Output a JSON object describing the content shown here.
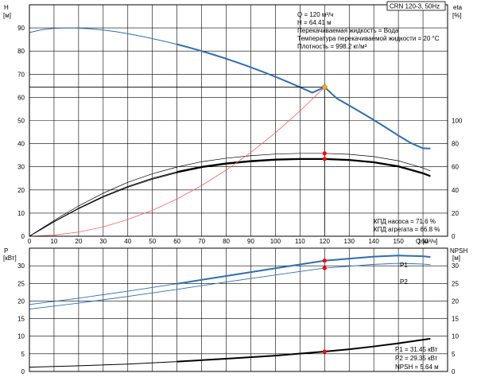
{
  "colors": {
    "head_curve": "#2f6db3",
    "efficiency_pump": "#000000",
    "efficiency_unit": "#000000",
    "system_curve": "#ff6060",
    "operating_point": "#ff0000",
    "duty_point": "#f5a623",
    "power_p1": "#2f6db3",
    "power_p2": "#2f6db3",
    "npsh": "#000000"
  },
  "labels": {
    "pump_model": "CRN 120-3, 50Hz",
    "h_axis_label": "H",
    "h_axis_unit": "[м]",
    "eta_axis_label": "eta",
    "eta_axis_unit": "[%]",
    "q_axis_label": "Q [м³/ч]",
    "p_axis_label": "P",
    "p_axis_unit": "[кВт]",
    "npsh_axis_label": "NPSH",
    "npsh_axis_unit": "[м]",
    "p1_label": "P1",
    "p2_label": "P2"
  },
  "info_top": [
    "Q = 120 м³/ч",
    "H = 64.41 м",
    "Перекачиваемая жидкость = Вода",
    "Температура перекачиваемой жидкости = 20 °C",
    "Плотность = 998.2 кг/м³"
  ],
  "info_eff": [
    "КПД насоса = 71.6 %",
    "КПД агрегата = 66.8 %"
  ],
  "info_bottom": [
    "P1 = 31.45 кВт",
    "P2 = 29.35 кВт",
    "NPSH = 5.64 м"
  ],
  "chart_data": [
    {
      "type": "line",
      "name": "head-efficiency",
      "x_ticks": [
        0,
        10,
        20,
        30,
        40,
        50,
        60,
        70,
        80,
        90,
        100,
        110,
        120,
        130,
        140,
        150,
        160
      ],
      "y_left_ticks": [
        0,
        10,
        20,
        30,
        40,
        50,
        60,
        70,
        80,
        90
      ],
      "y_right_ticks": [
        0,
        20,
        40,
        60,
        80,
        100
      ],
      "xlim": [
        0,
        170
      ],
      "ylim_left": [
        0,
        100
      ],
      "ylim_right": [
        0,
        200
      ],
      "grid": true,
      "series": [
        {
          "key": "head",
          "axis": "left",
          "x": [
            0,
            5,
            10,
            15,
            20,
            25,
            30,
            35,
            40,
            45,
            50,
            55,
            60,
            65,
            70,
            75,
            80,
            85,
            90,
            95,
            100,
            105,
            110,
            115,
            120,
            125,
            130,
            135,
            140,
            145,
            150,
            155,
            160,
            163
          ],
          "y": [
            88.0,
            89.2,
            89.8,
            90.0,
            89.9,
            89.6,
            89.1,
            88.4,
            87.5,
            86.5,
            85.4,
            84.2,
            82.9,
            81.5,
            80.0,
            78.4,
            76.7,
            74.9,
            73.0,
            71.0,
            68.9,
            66.7,
            64.4,
            62.0,
            64.41,
            59.5,
            56.5,
            53.4,
            50.2,
            46.9,
            43.5,
            40.3,
            38.0,
            37.9
          ],
          "heavy_from_x": 60
        },
        {
          "key": "eta_unit",
          "axis": "right",
          "x": [
            0,
            10,
            20,
            30,
            40,
            50,
            60,
            70,
            80,
            90,
            100,
            110,
            120,
            130,
            140,
            150,
            160,
            163
          ],
          "y": [
            0,
            12.6,
            24.2,
            34.4,
            43.0,
            50.0,
            55.6,
            60.0,
            63.0,
            65.0,
            66.3,
            66.8,
            66.8,
            66.0,
            64.0,
            60.5,
            54.5,
            52.0
          ],
          "heavy_from_x": 60
        },
        {
          "key": "eta_pump_band_upper",
          "axis": "right",
          "x": [
            0,
            10,
            20,
            30,
            40,
            50,
            60,
            70,
            80,
            90,
            100,
            110,
            120,
            130,
            140,
            150,
            160,
            163
          ],
          "y": [
            0,
            13.6,
            26.2,
            37.2,
            46.6,
            54.0,
            59.8,
            64.4,
            67.4,
            69.6,
            71.0,
            71.6,
            71.6,
            70.8,
            68.8,
            65.2,
            59.0,
            56.6
          ]
        },
        {
          "key": "eta_pump_band_lower",
          "axis": "right",
          "x": [
            0,
            10,
            20,
            30,
            40,
            50,
            60,
            70,
            80,
            90,
            100,
            110,
            120,
            130,
            140,
            150,
            160,
            163
          ],
          "y": [
            0,
            12.4,
            23.8,
            33.8,
            42.2,
            49.2,
            54.8,
            59.2,
            62.2,
            64.2,
            65.6,
            66.2,
            66.2,
            65.4,
            63.4,
            59.8,
            53.8,
            51.4
          ]
        },
        {
          "key": "system",
          "axis": "left",
          "x": [
            0,
            10,
            20,
            30,
            40,
            50,
            60,
            70,
            80,
            90,
            100,
            110,
            120
          ],
          "y": [
            0,
            0.5,
            1.8,
            4.0,
            7.2,
            11.2,
            16.1,
            21.9,
            28.6,
            36.2,
            44.7,
            54.1,
            64.41
          ]
        }
      ],
      "operating_point": {
        "x": 120,
        "head": 64.41
      },
      "marker_points_left": [
        {
          "x": 120,
          "y": 64.41,
          "kind": "duty"
        },
        {
          "x": 120,
          "y": 35.8,
          "kind": "op"
        },
        {
          "x": 120,
          "y": 33.4,
          "kind": "op"
        }
      ]
    },
    {
      "type": "line",
      "name": "power-npsh",
      "y_left_ticks": [
        0,
        5,
        10,
        15,
        20,
        25,
        30
      ],
      "y_right_ticks": [
        0,
        5,
        10,
        15,
        20,
        25,
        30
      ],
      "ylim_left": [
        0,
        35
      ],
      "ylim_right": [
        0,
        35
      ],
      "xlim": [
        0,
        170
      ],
      "grid": true,
      "series": [
        {
          "key": "p1",
          "axis": "left",
          "x": [
            0,
            20,
            40,
            60,
            80,
            100,
            120,
            140,
            150,
            160,
            163
          ],
          "y": [
            19.0,
            20.8,
            22.8,
            24.9,
            27.1,
            29.3,
            31.45,
            32.6,
            32.9,
            32.7,
            32.5
          ],
          "heavy_from_x": 60
        },
        {
          "key": "p2",
          "axis": "left",
          "x": [
            0,
            20,
            40,
            60,
            80,
            100,
            120,
            140,
            150,
            160,
            163
          ],
          "y": [
            17.7,
            19.4,
            21.3,
            23.3,
            25.4,
            27.4,
            29.35,
            30.4,
            30.7,
            30.5,
            30.3
          ]
        },
        {
          "key": "npsh",
          "axis": "right",
          "x": [
            0,
            20,
            40,
            60,
            80,
            100,
            120,
            130,
            140,
            150,
            160,
            163
          ],
          "y": [
            1.2,
            1.6,
            2.1,
            2.8,
            3.6,
            4.5,
            5.64,
            6.3,
            7.1,
            8.0,
            9.0,
            9.3
          ],
          "heavy_from_x": 60
        }
      ],
      "marker_points": [
        {
          "x": 120,
          "y": 31.45,
          "axis": "left"
        },
        {
          "x": 120,
          "y": 29.35,
          "axis": "left"
        },
        {
          "x": 120,
          "y": 5.64,
          "axis": "right"
        }
      ]
    }
  ]
}
